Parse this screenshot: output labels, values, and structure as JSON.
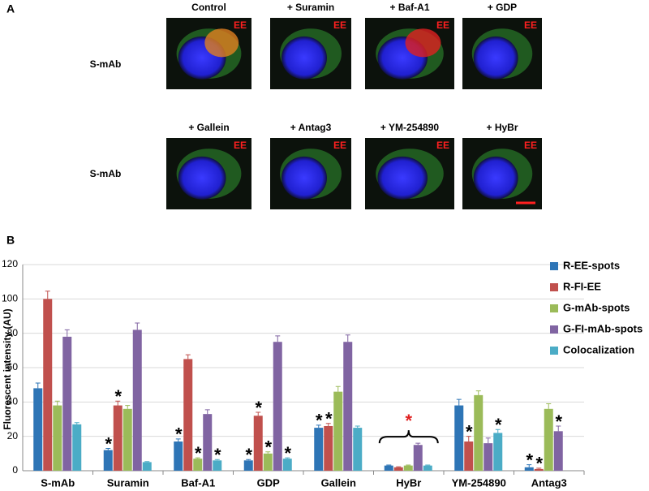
{
  "panel_a": {
    "label": "A",
    "row_label": "S-mAb",
    "badge": "EE",
    "images": [
      {
        "title": "Control"
      },
      {
        "title": "+ Suramin"
      },
      {
        "title": "+ Baf-A1"
      },
      {
        "title": "+ GDP"
      },
      {
        "title": "+ Gallein"
      },
      {
        "title": "+ Antag3"
      },
      {
        "title": "+ YM-254890"
      },
      {
        "title": "+ HyBr"
      }
    ]
  },
  "chart_data": {
    "type": "bar",
    "panel_label": "B",
    "y_label": "Fluorescent intensity (AU)",
    "categories": [
      "S-mAb",
      "Suramin",
      "Baf-A1",
      "GDP",
      "Gallein",
      "HyBr",
      "YM-254890",
      "Antag3"
    ],
    "series": [
      {
        "name": "R-EE-spots",
        "color": "#2e75b6",
        "values": [
          48,
          12,
          17,
          6,
          25,
          3,
          38,
          2
        ],
        "errors": [
          3,
          1,
          1.5,
          0.5,
          1.5,
          0.3,
          3.5,
          1.5
        ]
      },
      {
        "name": "R-FI-EE",
        "color": "#c0504d",
        "values": [
          100,
          38,
          65,
          32,
          26,
          2,
          17,
          1
        ],
        "errors": [
          4.5,
          2.5,
          2.5,
          2,
          1.5,
          0.3,
          3,
          0.5
        ]
      },
      {
        "name": "G-mAb-spots",
        "color": "#9bbb59",
        "values": [
          38,
          36,
          7,
          10,
          46,
          3,
          44,
          36
        ],
        "errors": [
          2.5,
          2,
          0.5,
          1,
          3,
          0.3,
          2.5,
          3
        ]
      },
      {
        "name": "G-FI-mAb-spots",
        "color": "#8064a2",
        "values": [
          78,
          82,
          33,
          75,
          75,
          15,
          16,
          23
        ],
        "errors": [
          4,
          4,
          2.5,
          3.5,
          4,
          1,
          3,
          3
        ]
      },
      {
        "name": "Colocalization",
        "color": "#4bacc6",
        "values": [
          27,
          5,
          6,
          7,
          25,
          3,
          22,
          0
        ],
        "errors": [
          1,
          0.3,
          0.5,
          0.5,
          1,
          0.3,
          2,
          0
        ]
      }
    ],
    "ylim": [
      0,
      120
    ],
    "yticks": [
      0,
      20,
      40,
      60,
      80,
      100,
      120
    ],
    "grid": true,
    "legend": "right",
    "annotations": [
      {
        "text": "*",
        "series": 0,
        "category": 1
      },
      {
        "text": "*",
        "series": 1,
        "category": 1
      },
      {
        "text": "*",
        "series": 0,
        "category": 2
      },
      {
        "text": "*",
        "series": 2,
        "category": 2
      },
      {
        "text": "*",
        "series": 4,
        "category": 2
      },
      {
        "text": "*",
        "series": 0,
        "category": 3
      },
      {
        "text": "*",
        "series": 1,
        "category": 3
      },
      {
        "text": "*",
        "series": 2,
        "category": 3
      },
      {
        "text": "*",
        "series": 4,
        "category": 3
      },
      {
        "text": "*",
        "series": 0,
        "category": 4
      },
      {
        "text": "*",
        "series": 1,
        "category": 4
      },
      {
        "text": "*",
        "category": 5,
        "color": "#e02020"
      },
      {
        "text": "*",
        "series": 1,
        "category": 6
      },
      {
        "text": "*",
        "series": 4,
        "category": 6
      },
      {
        "text": "*",
        "series": 0,
        "category": 7
      },
      {
        "text": "*",
        "series": 1,
        "category": 7
      },
      {
        "text": "*",
        "series": 3,
        "category": 7
      }
    ]
  }
}
